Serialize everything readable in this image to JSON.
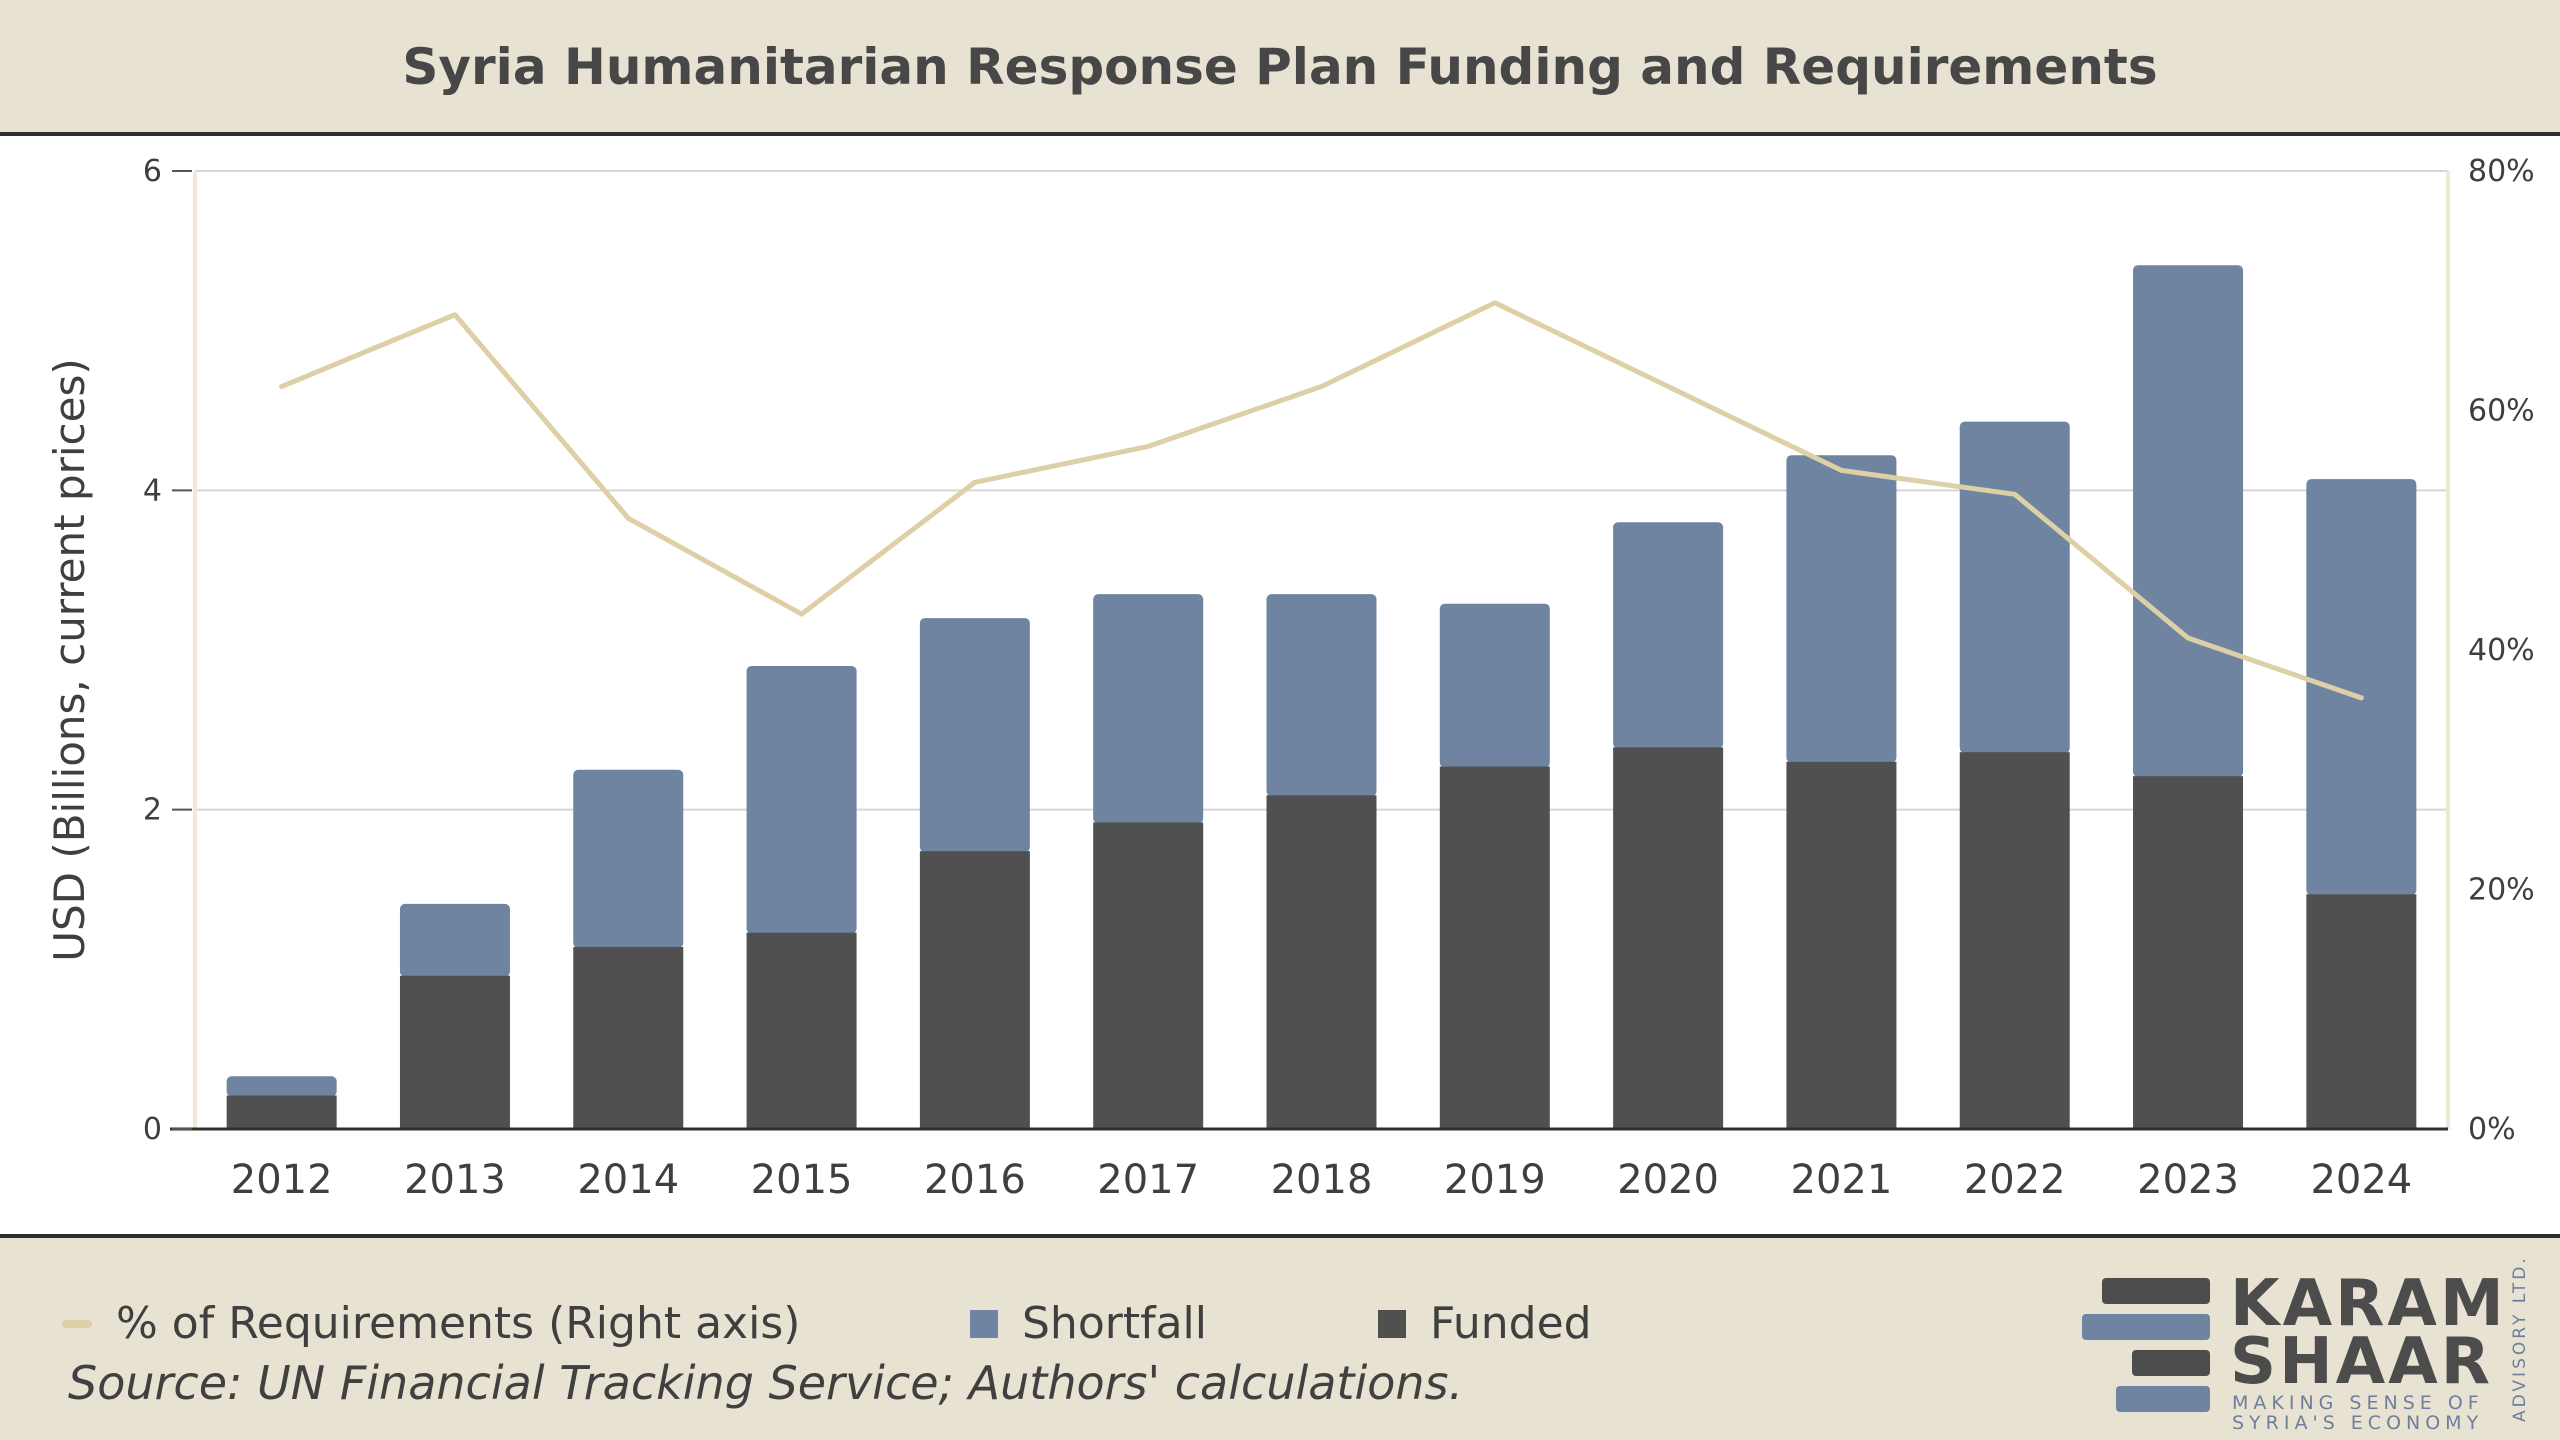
{
  "title": "Syria Humanitarian Response Plan Funding and Requirements",
  "colors": {
    "background": "#e8e2d3",
    "plot_background": "#ffffff",
    "funded": "#505050",
    "shortfall": "#6f84a1",
    "percent_line": "#ddd0a6",
    "gridline": "#d6d6d6"
  },
  "chart_data": {
    "type": "bar",
    "stacked": true,
    "categories": [
      "2012",
      "2013",
      "2014",
      "2015",
      "2016",
      "2017",
      "2018",
      "2019",
      "2020",
      "2021",
      "2022",
      "2023",
      "2024"
    ],
    "series": [
      {
        "name": "Funded",
        "axis": "left",
        "values": [
          0.21,
          0.96,
          1.14,
          1.23,
          1.74,
          1.92,
          2.09,
          2.27,
          2.39,
          2.3,
          2.36,
          2.21,
          1.47
        ]
      },
      {
        "name": "Shortfall",
        "axis": "left",
        "values": [
          0.12,
          0.45,
          1.11,
          1.67,
          1.46,
          1.43,
          1.26,
          1.02,
          1.41,
          1.92,
          2.07,
          3.2,
          2.6
        ]
      },
      {
        "name": "% of Requirements (Right axis)",
        "type": "line",
        "axis": "right",
        "values": [
          62,
          68,
          51,
          43,
          54,
          57,
          62,
          69,
          62,
          55,
          53,
          41,
          36
        ]
      }
    ],
    "ylabel": "USD (Billions, current prices)",
    "ylim": [
      0,
      6
    ],
    "yticks": [
      "0",
      "2",
      "4",
      "6"
    ],
    "y2lim": [
      0,
      80
    ],
    "y2ticks": [
      "0%",
      "20%",
      "40%",
      "60%",
      "80%"
    ],
    "grid": true,
    "legend_position": "bottom"
  },
  "legend": {
    "percent_label": "% of Requirements (Right axis)",
    "shortfall_label": "Shortfall",
    "funded_label": "Funded"
  },
  "source": "Source: UN Financial Tracking Service; Authors' calculations.",
  "logo": {
    "line1": "KARAM",
    "line2": "SHAAR",
    "tagline1": "MAKING SENSE OF",
    "tagline2": "SYRIA'S ECONOMY",
    "side_text": "ADVISORY LTD."
  }
}
